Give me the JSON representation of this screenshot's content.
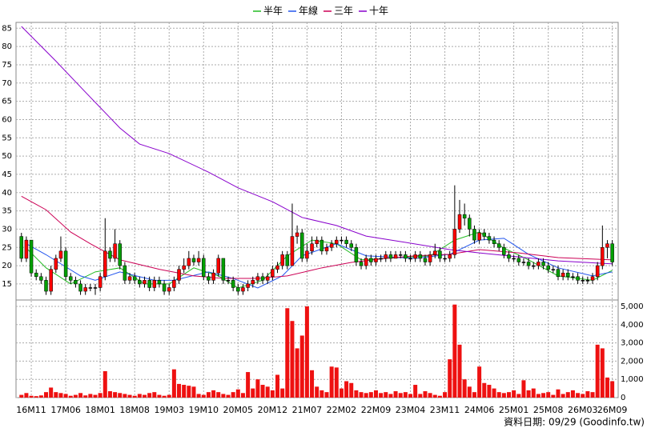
{
  "chart_data": {
    "type": "candlestick",
    "footer": "資料日期: 09/29 (Goodinfo.tw)",
    "up_color": "#ff0000",
    "down_color": "#00a000",
    "xlim": [
      -1.1,
      121.2
    ],
    "xticks": [
      {
        "value": 2,
        "label": "16M11"
      },
      {
        "value": 9,
        "label": "17M06"
      },
      {
        "value": 16,
        "label": "18M01"
      },
      {
        "value": 23,
        "label": "18M08"
      },
      {
        "value": 30,
        "label": "19M03"
      },
      {
        "value": 37,
        "label": "19M10"
      },
      {
        "value": 44,
        "label": "20M05"
      },
      {
        "value": 51,
        "label": "20M12"
      },
      {
        "value": 58,
        "label": "21M07"
      },
      {
        "value": 65,
        "label": "22M02"
      },
      {
        "value": 72,
        "label": "22M09"
      },
      {
        "value": 79,
        "label": "23M04"
      },
      {
        "value": 86,
        "label": "23M11"
      },
      {
        "value": 93,
        "label": "24M06"
      },
      {
        "value": 100,
        "label": "25M01"
      },
      {
        "value": 107,
        "label": "25M08"
      },
      {
        "value": 114,
        "label": "26M03"
      },
      {
        "value": 120,
        "label": "26M09"
      }
    ],
    "ylim": [
      10.6,
      86.6
    ],
    "yticks": [
      15,
      20,
      25,
      30,
      35,
      40,
      45,
      50,
      55,
      60,
      65,
      70,
      75,
      80,
      85
    ],
    "grid": true,
    "ohlc": [
      [
        28,
        29,
        21,
        22
      ],
      [
        22,
        28,
        21,
        27
      ],
      [
        27,
        27,
        17,
        18
      ],
      [
        18,
        19,
        16,
        17
      ],
      [
        17,
        18,
        15,
        16
      ],
      [
        16,
        17,
        12,
        13
      ],
      [
        13,
        20,
        12,
        19
      ],
      [
        19,
        23,
        18,
        22
      ],
      [
        22,
        28,
        21,
        24
      ],
      [
        24,
        25,
        16,
        17
      ],
      [
        17,
        18,
        15,
        16
      ],
      [
        16,
        17,
        14,
        15
      ],
      [
        15,
        16,
        12,
        13
      ],
      [
        13,
        15,
        12,
        14
      ],
      [
        14,
        15,
        13,
        14
      ],
      [
        14,
        15,
        12,
        14
      ],
      [
        14,
        18,
        13,
        17
      ],
      [
        17,
        33,
        16,
        24
      ],
      [
        24,
        25,
        21,
        22
      ],
      [
        22,
        30,
        21,
        26
      ],
      [
        26,
        27,
        19,
        20
      ],
      [
        20,
        21,
        15,
        16
      ],
      [
        16,
        18,
        15,
        17
      ],
      [
        17,
        18,
        15,
        16
      ],
      [
        16,
        17,
        14,
        15
      ],
      [
        15,
        17,
        14,
        16
      ],
      [
        16,
        17,
        13,
        14
      ],
      [
        14,
        17,
        13,
        16
      ],
      [
        16,
        17,
        14,
        15
      ],
      [
        15,
        16,
        12,
        13
      ],
      [
        13,
        15,
        12,
        14
      ],
      [
        14,
        17,
        13,
        16
      ],
      [
        16,
        20,
        15,
        19
      ],
      [
        19,
        22,
        18,
        20
      ],
      [
        20,
        24,
        19,
        22
      ],
      [
        22,
        23,
        20,
        21
      ],
      [
        21,
        24,
        20,
        22
      ],
      [
        22,
        23,
        16,
        17
      ],
      [
        17,
        18,
        15,
        16
      ],
      [
        16,
        19,
        15,
        18
      ],
      [
        18,
        23,
        17,
        22
      ],
      [
        22,
        22,
        15,
        16
      ],
      [
        16,
        17,
        15,
        16
      ],
      [
        16,
        17,
        13,
        14
      ],
      [
        14,
        15,
        12,
        13
      ],
      [
        13,
        15,
        12,
        14
      ],
      [
        14,
        16,
        13,
        15
      ],
      [
        15,
        17,
        14,
        16
      ],
      [
        16,
        18,
        15,
        17
      ],
      [
        17,
        18,
        15,
        16
      ],
      [
        16,
        18,
        15,
        17
      ],
      [
        17,
        20,
        16,
        19
      ],
      [
        19,
        21,
        18,
        20
      ],
      [
        20,
        24,
        19,
        23
      ],
      [
        23,
        24,
        19,
        20
      ],
      [
        20,
        37,
        20,
        28
      ],
      [
        28,
        31,
        26,
        29
      ],
      [
        29,
        30,
        21,
        22
      ],
      [
        22,
        26,
        21,
        24
      ],
      [
        24,
        28,
        23,
        26
      ],
      [
        26,
        28,
        25,
        27
      ],
      [
        27,
        28,
        23,
        24
      ],
      [
        24,
        26,
        23,
        25
      ],
      [
        25,
        27,
        24,
        26
      ],
      [
        26,
        28,
        25,
        27
      ],
      [
        27,
        28,
        26,
        27
      ],
      [
        27,
        28,
        25,
        26
      ],
      [
        26,
        27,
        24,
        25
      ],
      [
        25,
        26,
        20,
        21
      ],
      [
        21,
        22,
        19,
        20
      ],
      [
        20,
        23,
        19,
        22
      ],
      [
        22,
        23,
        20,
        21
      ],
      [
        21,
        23,
        20,
        22
      ],
      [
        22,
        23,
        21,
        22
      ],
      [
        22,
        24,
        21,
        23
      ],
      [
        23,
        24,
        21,
        22
      ],
      [
        22,
        24,
        22,
        23
      ],
      [
        23,
        24,
        22,
        23
      ],
      [
        23,
        24,
        21,
        22
      ],
      [
        22,
        23,
        21,
        22
      ],
      [
        22,
        24,
        21,
        23
      ],
      [
        23,
        24,
        21,
        22
      ],
      [
        22,
        23,
        20,
        21
      ],
      [
        21,
        24,
        20,
        23
      ],
      [
        23,
        26,
        22,
        24
      ],
      [
        24,
        25,
        21,
        22
      ],
      [
        22,
        23,
        21,
        22
      ],
      [
        22,
        24,
        21,
        23
      ],
      [
        23,
        42,
        22,
        30
      ],
      [
        30,
        38,
        29,
        34
      ],
      [
        34,
        37,
        31,
        33
      ],
      [
        33,
        34,
        28,
        30
      ],
      [
        30,
        31,
        26,
        27
      ],
      [
        27,
        30,
        26,
        29
      ],
      [
        29,
        30,
        27,
        28
      ],
      [
        28,
        29,
        26,
        27
      ],
      [
        27,
        28,
        25,
        26
      ],
      [
        26,
        27,
        24,
        25
      ],
      [
        25,
        26,
        22,
        23
      ],
      [
        23,
        24,
        21,
        22
      ],
      [
        22,
        23,
        21,
        22
      ],
      [
        22,
        23,
        20,
        21
      ],
      [
        21,
        22,
        20,
        21
      ],
      [
        21,
        22,
        19,
        20
      ],
      [
        20,
        21,
        19,
        20
      ],
      [
        20,
        22,
        19,
        21
      ],
      [
        21,
        22,
        19,
        20
      ],
      [
        20,
        21,
        18,
        19
      ],
      [
        19,
        20,
        18,
        19
      ],
      [
        19,
        20,
        16,
        17
      ],
      [
        17,
        19,
        16,
        18
      ],
      [
        18,
        19,
        16,
        17
      ],
      [
        17,
        18,
        16,
        17
      ],
      [
        17,
        18,
        15,
        16
      ],
      [
        16,
        17,
        15,
        16
      ],
      [
        16,
        17,
        15,
        16
      ],
      [
        16,
        18,
        15,
        17
      ],
      [
        17,
        21,
        16,
        20
      ],
      [
        20,
        31,
        19,
        25
      ],
      [
        25,
        27,
        22,
        26
      ],
      [
        26,
        27,
        20,
        21
      ]
    ],
    "series": [
      {
        "name": "半年",
        "color": "#22bb22",
        "x": [
          1,
          5,
          10,
          15,
          20,
          25,
          30,
          35,
          40,
          44,
          49,
          54,
          59,
          64,
          69,
          77,
          83,
          88,
          93,
          98,
          103,
          109,
          116,
          120
        ],
        "values": [
          24.8,
          19.4,
          15,
          18.3,
          19.4,
          15,
          15,
          19.4,
          17.2,
          13.9,
          16,
          22.7,
          27,
          26,
          21.6,
          22.2,
          22.7,
          27,
          29.2,
          24.8,
          21.6,
          17.2,
          16,
          18.7
        ]
      },
      {
        "name": "年線",
        "color": "#2255ee",
        "x": [
          1,
          5,
          12,
          15,
          20,
          27,
          31,
          38,
          43,
          48,
          53,
          57,
          64,
          70,
          80,
          87,
          93,
          98,
          103,
          109,
          116,
          120
        ],
        "values": [
          26,
          23,
          17.2,
          16,
          18.3,
          16,
          16,
          18.3,
          16.5,
          13.9,
          17.2,
          22.7,
          26,
          22.7,
          22,
          23.1,
          27,
          27.5,
          23.1,
          19.4,
          17.2,
          18.3
        ]
      },
      {
        "name": "三年",
        "color": "#cc0055",
        "x": [
          0,
          5,
          10,
          14,
          20,
          28,
          35,
          41,
          48,
          54,
          61,
          67,
          74,
          80,
          87,
          93,
          101,
          109,
          120
        ],
        "values": [
          39,
          35.3,
          29.2,
          26,
          21.6,
          19,
          17.2,
          16.5,
          16.5,
          17.2,
          19.4,
          20.9,
          22,
          22.7,
          23.1,
          24.4,
          23.5,
          22.2,
          21.6
        ]
      },
      {
        "name": "十年",
        "color": "#8800cc",
        "x": [
          0,
          7,
          13,
          20,
          24,
          30,
          38,
          44,
          51,
          57,
          64,
          70,
          77,
          87,
          93,
          101,
          109,
          120
        ],
        "values": [
          85.5,
          76,
          67.5,
          57.7,
          53.3,
          50.7,
          45.6,
          41.3,
          37.5,
          33.2,
          31,
          28.1,
          26.6,
          24.4,
          23.5,
          22.4,
          21.3,
          20.5
        ]
      }
    ],
    "volume": {
      "color": "#ee1111",
      "ylim": [
        0,
        5350
      ],
      "yticks": [
        0,
        {
          "value": 1000,
          "label": "1,000"
        },
        {
          "value": 2000,
          "label": "2,000"
        },
        {
          "value": 3000,
          "label": "3,000"
        },
        {
          "value": 4000,
          "label": "4,000"
        },
        {
          "value": 5000,
          "label": "5,000"
        }
      ],
      "values": [
        150,
        250,
        100,
        80,
        120,
        300,
        550,
        300,
        250,
        200,
        100,
        150,
        250,
        120,
        200,
        150,
        250,
        1450,
        350,
        300,
        250,
        200,
        150,
        100,
        200,
        150,
        250,
        300,
        150,
        100,
        150,
        1550,
        750,
        700,
        650,
        600,
        200,
        150,
        300,
        400,
        300,
        200,
        150,
        300,
        450,
        250,
        1400,
        500,
        1000,
        700,
        600,
        400,
        1250,
        500,
        4900,
        4200,
        2700,
        3400,
        5000,
        1500,
        600,
        400,
        300,
        1700,
        1650,
        500,
        900,
        800,
        400,
        300,
        250,
        300,
        400,
        250,
        300,
        200,
        350,
        250,
        300,
        200,
        700,
        200,
        350,
        250,
        150,
        100,
        300,
        2100,
        5100,
        2900,
        1000,
        600,
        300,
        1700,
        800,
        700,
        500,
        300,
        250,
        300,
        400,
        200,
        950,
        400,
        500,
        200,
        250,
        300,
        150,
        450,
        200,
        300,
        400,
        250,
        200,
        350,
        300,
        2900,
        2700,
        1100,
        900
      ]
    }
  }
}
